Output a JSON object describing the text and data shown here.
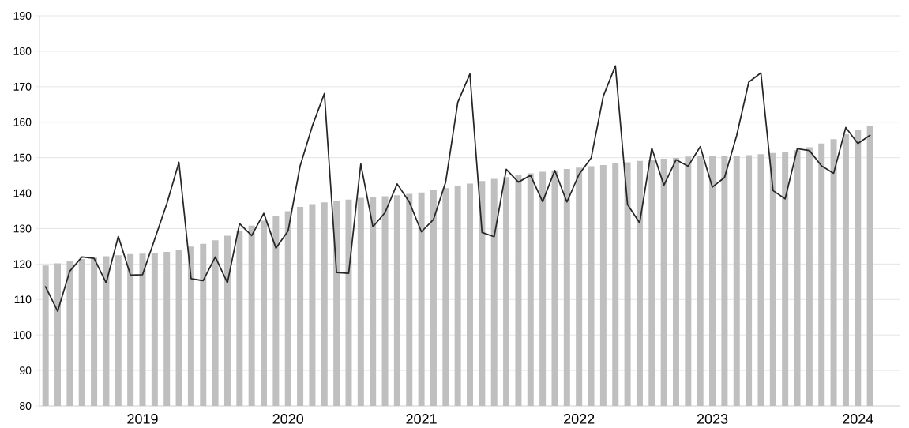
{
  "chart_data": {
    "type": "bar",
    "categories": [
      null,
      null,
      null,
      null,
      null,
      null,
      null,
      null,
      "2019",
      null,
      null,
      null,
      null,
      null,
      null,
      null,
      null,
      null,
      null,
      null,
      "2020",
      null,
      null,
      null,
      null,
      null,
      null,
      null,
      null,
      null,
      null,
      "2021",
      null,
      null,
      null,
      null,
      null,
      null,
      null,
      null,
      null,
      null,
      null,
      null,
      "2022",
      null,
      null,
      null,
      null,
      null,
      null,
      null,
      null,
      null,
      null,
      "2023",
      null,
      null,
      null,
      null,
      null,
      null,
      null,
      null,
      null,
      null,
      null,
      "2024",
      null
    ],
    "series": [
      {
        "color": "#bfbfbf",
        "values": [
          119.6,
          120.2,
          120.9,
          121.4,
          121.8,
          122.2,
          122.5,
          122.8,
          122.9,
          123.1,
          123.4,
          124.0,
          124.9,
          125.7,
          126.7,
          128.0,
          129.3,
          130.8,
          132.2,
          133.5,
          134.9,
          136.1,
          136.9,
          137.4,
          137.8,
          138.2,
          138.7,
          138.9,
          139.1,
          139.4,
          139.8,
          140.2,
          140.8,
          141.4,
          142.1,
          142.7,
          143.4,
          144.0,
          144.5,
          145.1,
          145.6,
          146.0,
          146.4,
          146.8,
          147.2,
          147.6,
          147.9,
          148.4,
          148.7,
          149.1,
          149.4,
          149.7,
          149.9,
          150.3,
          150.4,
          150.4,
          150.4,
          150.5,
          150.7,
          151.0,
          151.3,
          151.7,
          152.1,
          152.9,
          154.0,
          155.2,
          156.6,
          157.8,
          158.9
        ]
      },
      {
        "type": "line",
        "color": "#262626",
        "values": [
          113.6,
          106.7,
          118.0,
          122.0,
          121.6,
          114.7,
          127.8,
          116.9,
          117.0,
          127.0,
          137.0,
          148.7,
          115.9,
          115.3,
          122.0,
          114.7,
          131.4,
          128.0,
          134.3,
          124.5,
          129.3,
          147.7,
          158.9,
          168.1,
          117.6,
          117.4,
          148.2,
          130.5,
          134.5,
          142.6,
          137.5,
          129.1,
          132.6,
          143.1,
          165.6,
          173.6,
          128.9,
          127.7,
          146.7,
          143.1,
          145.0,
          137.6,
          146.4,
          137.5,
          145.3,
          149.9,
          167.3,
          175.9,
          136.8,
          131.6,
          152.7,
          142.2,
          149.4,
          147.6,
          153.1,
          141.7,
          144.4,
          156.2,
          171.3,
          173.9,
          140.7,
          138.4,
          152.5,
          152.0,
          147.7,
          145.6,
          158.5,
          154.0,
          156.3
        ]
      }
    ],
    "ylim": [
      80,
      190
    ],
    "yticks": [
      80,
      90,
      100,
      110,
      120,
      130,
      140,
      150,
      160,
      170,
      180,
      190
    ],
    "grid": "y"
  }
}
